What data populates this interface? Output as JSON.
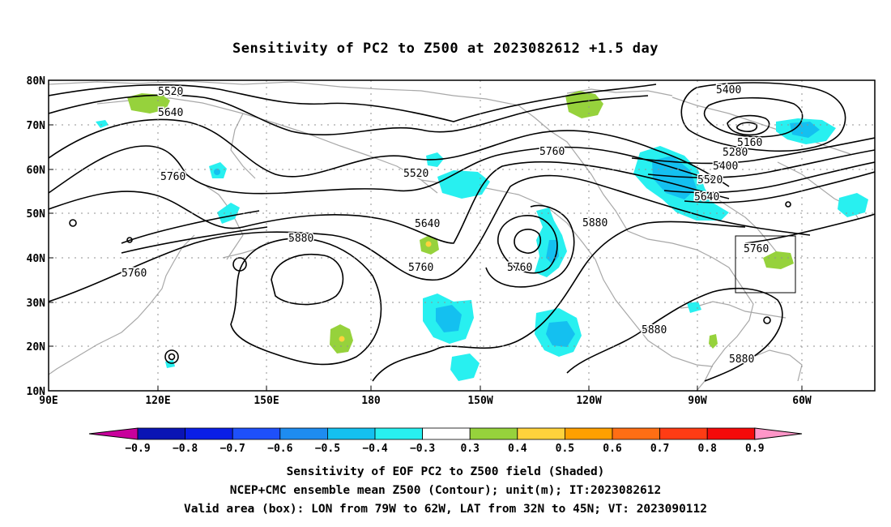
{
  "title": "Sensitivity of PC2 to Z500 at 2023082612 +1.5 day",
  "lon_labels": [
    "90E",
    "120E",
    "150E",
    "180",
    "150W",
    "120W",
    "90W",
    "60W"
  ],
  "lat_labels": [
    "80N",
    "70N",
    "60N",
    "50N",
    "40N",
    "30N",
    "20N",
    "10N"
  ],
  "contour_labels": [
    "5520",
    "5640",
    "5760",
    "5760",
    "5520",
    "5640",
    "5760",
    "5880",
    "5760",
    "5760",
    "5880",
    "5880",
    "5400",
    "5160",
    "5280",
    "5400",
    "5520",
    "5640",
    "5760",
    "5880"
  ],
  "colorbar": {
    "labels": [
      "−0.9",
      "−0.8",
      "−0.7",
      "−0.6",
      "−0.5",
      "−0.4",
      "−0.3",
      "0.3",
      "0.4",
      "0.5",
      "0.6",
      "0.7",
      "0.8",
      "0.9"
    ],
    "colors": [
      "#c8009c",
      "#0a14b4",
      "#0a1ee6",
      "#1e50fa",
      "#1e8cf0",
      "#14c0f0",
      "#28f0f0",
      "#ffffff",
      "#96d23c",
      "#ffd23c",
      "#ffa000",
      "#ff6e14",
      "#ff3c14",
      "#f50a0a",
      "#ff96c8"
    ]
  },
  "valid_box": {
    "lon": "79W to 62W",
    "lat": "32N to 45N"
  },
  "captions": [
    "Sensitivity of EOF PC2 to Z500 field (Shaded)",
    "NCEP+CMC ensemble mean Z500 (Contour); unit(m); IT:2023082612",
    "Valid area (box): LON from 79W to 62W, LAT from 32N to 45N; VT: 2023090112"
  ]
}
